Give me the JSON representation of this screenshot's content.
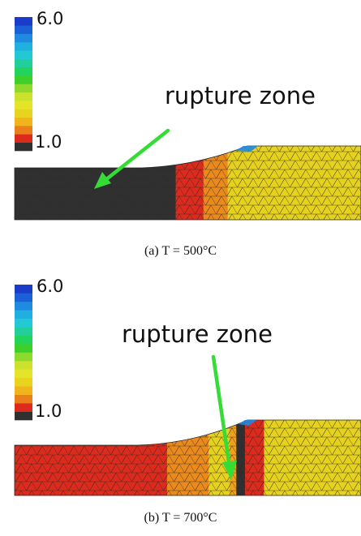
{
  "colors": {
    "scale": [
      "#303030",
      "#dc2a1c",
      "#ea7f1c",
      "#f0b41c",
      "#e8d41e",
      "#e4e42a",
      "#cbe12c",
      "#8fd82c",
      "#3fcf2a",
      "#22d35c",
      "#22cf9c",
      "#22c8d4",
      "#1fb0e0",
      "#1f8ae0",
      "#1c60d8",
      "#1a3cc8"
    ],
    "mesh_line": "#2a2a2a",
    "arrow": "#35dc35"
  },
  "scale": {
    "max_label": "6.0",
    "min_label": "1.0"
  },
  "panel_a": {
    "annotation": "rupture zone",
    "caption": "(a)  T = 500°C",
    "bands": [
      {
        "color": "#303030",
        "from": 0.0,
        "to": 0.465
      },
      {
        "color": "#dc2a1c",
        "from": 0.465,
        "to": 0.545
      },
      {
        "color": "#ea8a1c",
        "from": 0.545,
        "to": 0.615
      },
      {
        "color": "#e6d21e",
        "from": 0.615,
        "to": 1.0
      }
    ]
  },
  "panel_b": {
    "annotation": "rupture zone",
    "caption": "(b)  T = 700°C",
    "bands": [
      {
        "color": "#dc2a1c",
        "from": 0.0,
        "to": 0.44
      },
      {
        "color": "#ea8a1c",
        "from": 0.44,
        "to": 0.56
      },
      {
        "color": "#e6d21e",
        "from": 0.56,
        "to": 0.62
      },
      {
        "color": "#f0a01c",
        "from": 0.62,
        "to": 0.64
      },
      {
        "color": "#303030",
        "from": 0.64,
        "to": 0.665
      },
      {
        "color": "#dc2a1c",
        "from": 0.665,
        "to": 0.72
      },
      {
        "color": "#e6d21e",
        "from": 0.72,
        "to": 1.0
      }
    ]
  }
}
